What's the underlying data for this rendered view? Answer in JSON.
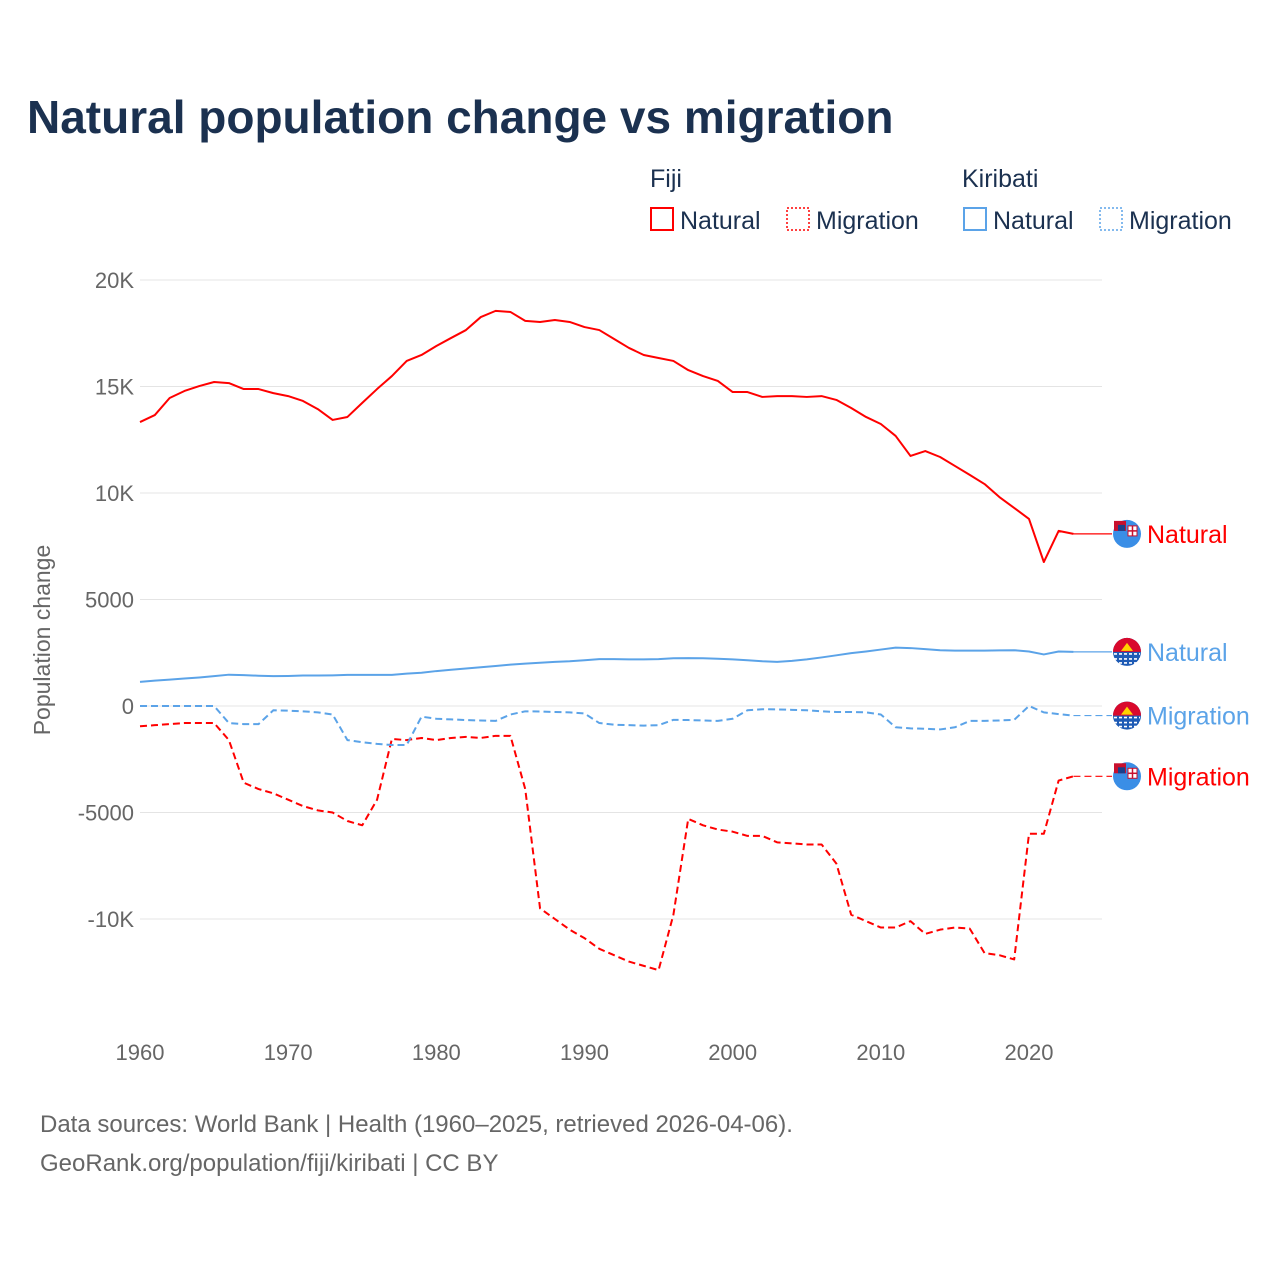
{
  "chart_data": {
    "type": "line",
    "title": "Natural population change vs migration",
    "xlabel": "",
    "ylabel": "Population change",
    "xlim": [
      1960,
      2025
    ],
    "ylim": [
      -14000,
      21000
    ],
    "x_ticks": [
      "1960",
      "1970",
      "1980",
      "1990",
      "2000",
      "2010",
      "2020"
    ],
    "x_tick_values": [
      1960,
      1970,
      1980,
      1990,
      2000,
      2010,
      2020
    ],
    "y_ticks": [
      "20K",
      "15K",
      "10K",
      "5000",
      "0",
      "-5000",
      "-10K"
    ],
    "y_tick_values": [
      20000,
      15000,
      10000,
      5000,
      0,
      -5000,
      -10000
    ],
    "grid": true,
    "legend": {
      "groups": [
        {
          "name": "Fiji",
          "items": [
            "Natural",
            "Migration"
          ]
        },
        {
          "name": "Kiribati",
          "items": [
            "Natural",
            "Migration"
          ]
        }
      ],
      "placement": "top-right"
    },
    "x": [
      1960,
      1961,
      1962,
      1963,
      1964,
      1965,
      1966,
      1967,
      1968,
      1969,
      1970,
      1971,
      1972,
      1973,
      1974,
      1975,
      1976,
      1977,
      1978,
      1979,
      1980,
      1981,
      1982,
      1983,
      1984,
      1985,
      1986,
      1987,
      1988,
      1989,
      1990,
      1991,
      1992,
      1993,
      1994,
      1995,
      1996,
      1997,
      1998,
      1999,
      2000,
      2001,
      2002,
      2003,
      2004,
      2005,
      2006,
      2007,
      2008,
      2009,
      2010,
      2011,
      2012,
      2013,
      2014,
      2015,
      2016,
      2017,
      2018,
      2019,
      2020,
      2021,
      2022,
      2023
    ],
    "series": [
      {
        "name": "Natural",
        "country": "Fiji",
        "color": "#ff0000",
        "dash": "solid",
        "values": [
          13330,
          13660,
          14460,
          14790,
          15020,
          15210,
          15160,
          14880,
          14880,
          14690,
          14550,
          14320,
          13940,
          13430,
          13570,
          14230,
          14880,
          15490,
          16200,
          16480,
          16900,
          17280,
          17650,
          18260,
          18550,
          18500,
          18080,
          18030,
          18120,
          18030,
          17790,
          17650,
          17230,
          16810,
          16480,
          16340,
          16200,
          15770,
          15490,
          15260,
          14740,
          14740,
          14510,
          14550,
          14550,
          14510,
          14550,
          14370,
          13990,
          13570,
          13240,
          12680,
          11740,
          11970,
          11690,
          11270,
          10850,
          10420,
          9810,
          9300,
          8780,
          6760,
          8220,
          8080
        ]
      },
      {
        "name": "Migration",
        "country": "Fiji",
        "color": "#ff0000",
        "dash": "dashed",
        "values": [
          -950,
          -900,
          -850,
          -800,
          -800,
          -800,
          -1600,
          -3600,
          -3900,
          -4100,
          -4400,
          -4700,
          -4900,
          -5000,
          -5400,
          -5600,
          -4400,
          -1550,
          -1600,
          -1500,
          -1600,
          -1500,
          -1450,
          -1500,
          -1400,
          -1400,
          -3900,
          -9500,
          -10000,
          -10500,
          -10900,
          -11400,
          -11700,
          -12000,
          -12200,
          -12400,
          -9800,
          -5300,
          -5600,
          -5800,
          -5900,
          -6100,
          -6100,
          -6400,
          -6450,
          -6500,
          -6500,
          -7400,
          -9800,
          -10100,
          -10400,
          -10400,
          -10100,
          -10700,
          -10500,
          -10400,
          -10450,
          -11600,
          -11700,
          -11900,
          -6000,
          -6000,
          -3500,
          -3300
        ]
      },
      {
        "name": "Natural",
        "country": "Kiribati",
        "color": "#5ba3e8",
        "dash": "solid",
        "values": [
          1130,
          1190,
          1240,
          1290,
          1340,
          1400,
          1470,
          1450,
          1420,
          1400,
          1410,
          1430,
          1430,
          1440,
          1460,
          1460,
          1460,
          1460,
          1520,
          1560,
          1640,
          1700,
          1760,
          1820,
          1880,
          1940,
          1990,
          2030,
          2070,
          2100,
          2150,
          2200,
          2200,
          2190,
          2190,
          2200,
          2240,
          2250,
          2240,
          2220,
          2190,
          2150,
          2100,
          2070,
          2120,
          2190,
          2280,
          2380,
          2480,
          2560,
          2650,
          2740,
          2720,
          2670,
          2620,
          2600,
          2600,
          2600,
          2610,
          2620,
          2560,
          2420,
          2560,
          2540
        ]
      },
      {
        "name": "Migration",
        "country": "Kiribati",
        "color": "#5ba3e8",
        "dash": "dotted",
        "values": [
          0,
          0,
          0,
          0,
          0,
          0,
          -800,
          -850,
          -850,
          -200,
          -220,
          -250,
          -300,
          -400,
          -1600,
          -1700,
          -1780,
          -1830,
          -1830,
          -500,
          -600,
          -630,
          -660,
          -680,
          -700,
          -400,
          -250,
          -260,
          -280,
          -300,
          -350,
          -800,
          -880,
          -900,
          -920,
          -900,
          -650,
          -660,
          -680,
          -700,
          -600,
          -200,
          -150,
          -160,
          -180,
          -200,
          -250,
          -280,
          -280,
          -300,
          -400,
          -1000,
          -1050,
          -1070,
          -1100,
          -1000,
          -700,
          -700,
          -680,
          -650,
          0,
          -300,
          -380,
          -450
        ]
      }
    ],
    "end_labels": [
      "Natural",
      "Natural",
      "Migration",
      "Migration"
    ]
  },
  "legend_labels": {
    "fiji": "Fiji",
    "kiribati": "Kiribati",
    "natural": "Natural",
    "migration": "Migration"
  },
  "footer": {
    "line1": "Data sources: World Bank | Health (1960–2025, retrieved 2026-04-06).",
    "line2": "GeoRank.org/population/fiji/kiribati | CC BY"
  }
}
